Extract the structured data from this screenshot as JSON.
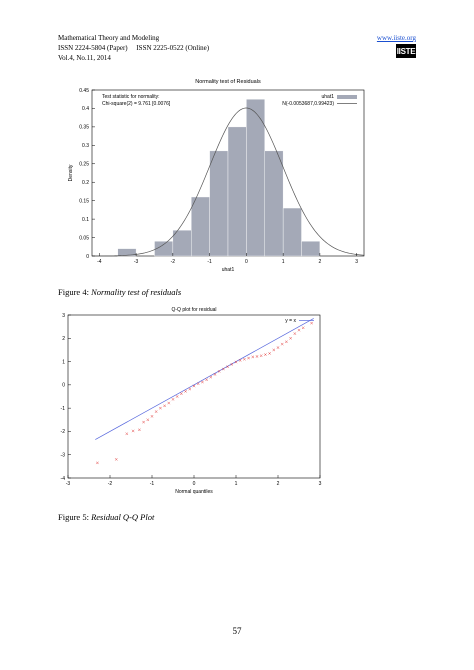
{
  "header": {
    "journal": "Mathematical Theory and Modeling",
    "issn": "ISSN 2224-5804 (Paper)     ISSN 2225-0522 (Online)",
    "volume": "Vol.4, No.11, 2014",
    "url": "www.iiste.org",
    "logo_text": "IISTE"
  },
  "figure4": {
    "caption_prefix": "Figure 4: ",
    "caption_title": "Normality test of residuals"
  },
  "figure5": {
    "caption_prefix": "Figure 5: ",
    "caption_title": "Residual Q-Q Plot"
  },
  "page_number": "57",
  "chart_data": [
    {
      "type": "bar",
      "title": "Normality test of Residuals",
      "xlabel": "uhat1",
      "ylabel": "Density",
      "xlim": [
        -4.2,
        3.2
      ],
      "ylim": [
        0,
        0.45
      ],
      "xticks": [
        -4,
        -3,
        -2,
        -1,
        0,
        1,
        2,
        3
      ],
      "yticks": [
        0,
        0.05,
        0.1,
        0.15,
        0.2,
        0.25,
        0.3,
        0.35,
        0.4,
        0.45
      ],
      "bin_width": 0.5,
      "bins": [
        {
          "x": -3.25,
          "y": 0.02
        },
        {
          "x": -3.75,
          "y": 0.0
        },
        {
          "x": -2.25,
          "y": 0.04
        },
        {
          "x": -1.75,
          "y": 0.07
        },
        {
          "x": -1.25,
          "y": 0.16
        },
        {
          "x": -0.75,
          "y": 0.285
        },
        {
          "x": -0.25,
          "y": 0.35
        },
        {
          "x": 0.25,
          "y": 0.425
        },
        {
          "x": 0.75,
          "y": 0.285
        },
        {
          "x": 1.25,
          "y": 0.13
        },
        {
          "x": 1.75,
          "y": 0.04
        },
        {
          "x": 2.25,
          "y": 0.0
        }
      ],
      "curve": {
        "name": "N(-0.0053687,0.99423)",
        "mean": -0.0053687,
        "sd": 0.99423
      },
      "series_name": "uhat1",
      "annotation": [
        "Test statistic for normality:",
        "Chi-square(2) = 9.761 [0.0076]"
      ],
      "bar_color": "#a4a9b7",
      "curve_color": "#555555",
      "legend": "top-right"
    },
    {
      "type": "scatter",
      "title": "Q-Q plot for residual",
      "xlabel": "Normal quantiles",
      "ylabel": "",
      "xlim": [
        -3,
        3
      ],
      "ylim": [
        -4,
        3
      ],
      "xticks": [
        -3,
        -2,
        -1,
        0,
        1,
        2,
        3
      ],
      "yticks": [
        -4,
        -3,
        -2,
        -1,
        0,
        1,
        2,
        3
      ],
      "reference_line": {
        "name": "y = x",
        "color": "#5566dd"
      },
      "point_color": "#dd2222",
      "points": [
        [
          -2.3,
          -3.35
        ],
        [
          -1.85,
          -3.2
        ],
        [
          -1.6,
          -2.1
        ],
        [
          -1.45,
          -1.98
        ],
        [
          -1.3,
          -1.93
        ],
        [
          -1.2,
          -1.6
        ],
        [
          -1.1,
          -1.5
        ],
        [
          -1.0,
          -1.35
        ],
        [
          -0.9,
          -1.15
        ],
        [
          -0.8,
          -1.0
        ],
        [
          -0.7,
          -0.9
        ],
        [
          -0.6,
          -0.78
        ],
        [
          -0.5,
          -0.62
        ],
        [
          -0.4,
          -0.5
        ],
        [
          -0.3,
          -0.38
        ],
        [
          -0.2,
          -0.28
        ],
        [
          -0.1,
          -0.18
        ],
        [
          0.0,
          -0.05
        ],
        [
          0.1,
          0.05
        ],
        [
          0.2,
          0.12
        ],
        [
          0.3,
          0.22
        ],
        [
          0.4,
          0.33
        ],
        [
          0.5,
          0.45
        ],
        [
          0.6,
          0.58
        ],
        [
          0.7,
          0.68
        ],
        [
          0.8,
          0.78
        ],
        [
          0.9,
          0.88
        ],
        [
          1.0,
          0.98
        ],
        [
          1.1,
          1.05
        ],
        [
          1.2,
          1.1
        ],
        [
          1.3,
          1.15
        ],
        [
          1.4,
          1.2
        ],
        [
          1.5,
          1.22
        ],
        [
          1.6,
          1.25
        ],
        [
          1.7,
          1.3
        ],
        [
          1.8,
          1.35
        ],
        [
          1.9,
          1.5
        ],
        [
          2.0,
          1.6
        ],
        [
          2.1,
          1.75
        ],
        [
          2.2,
          1.85
        ],
        [
          2.3,
          2.0
        ],
        [
          2.4,
          2.2
        ],
        [
          2.5,
          2.35
        ],
        [
          2.6,
          2.45
        ],
        [
          2.8,
          2.65
        ]
      ]
    }
  ]
}
